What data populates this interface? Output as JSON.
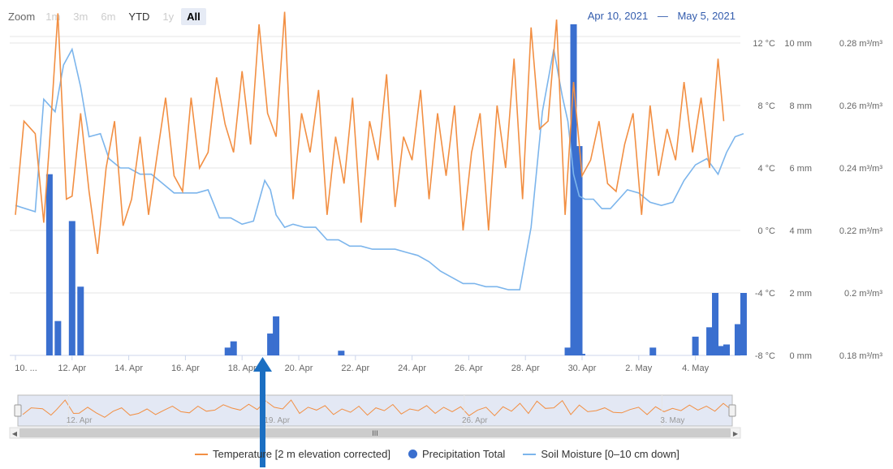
{
  "range_selector": {
    "zoom_label": "Zoom",
    "buttons": [
      {
        "label": "1m",
        "state": "disabled"
      },
      {
        "label": "3m",
        "state": "disabled"
      },
      {
        "label": "6m",
        "state": "disabled"
      },
      {
        "label": "YTD",
        "state": "active"
      },
      {
        "label": "1y",
        "state": "disabled"
      },
      {
        "label": "All",
        "state": "selected"
      }
    ],
    "from": "Apr 10, 2021",
    "separator": "—",
    "to": "May 5, 2021"
  },
  "colors": {
    "temperature": "#f28f43",
    "precipitation": "#3a6fcf",
    "soil": "#7cb5ec",
    "navigator_fill": "#ccd6eb",
    "arrow": "#1b6fc2"
  },
  "chart_data": {
    "type": "line",
    "x_tick_labels": [
      "10. ...",
      "12. Apr",
      "14. Apr",
      "16. Apr",
      "18. Apr",
      "20. Apr",
      "22. Apr",
      "24. Apr",
      "26. Apr",
      "28. Apr",
      "30. Apr",
      "2. May",
      "4. May"
    ],
    "x_range": [
      "2021-04-10",
      "2021-05-05"
    ],
    "y_axes": [
      {
        "name": "temperature",
        "unit": "°C",
        "ticks": [
          "12 °C",
          "8 °C",
          "4 °C",
          "0 °C",
          "-4 °C",
          "-8 °C"
        ],
        "min": -8,
        "max": 12
      },
      {
        "name": "precipitation",
        "unit": "mm",
        "ticks": [
          "10 mm",
          "8 mm",
          "6 mm",
          "4 mm",
          "2 mm",
          "0 mm"
        ],
        "min": 0,
        "max": 10
      },
      {
        "name": "soil_moisture",
        "unit": "m³/m³",
        "ticks": [
          "0.28 m³/m³",
          "0.26 m³/m³",
          "0.24 m³/m³",
          "0.22 m³/m³",
          "0.2 m³/m³",
          "0.18 m³/m³"
        ],
        "min": 0.18,
        "max": 0.28
      }
    ],
    "series": [
      {
        "name": "Temperature [2 m elevation corrected]",
        "type": "line",
        "axis": "temperature",
        "x": [
          10.0,
          10.3,
          10.7,
          11.0,
          11.2,
          11.5,
          11.8,
          12.0,
          12.3,
          12.6,
          12.9,
          13.2,
          13.5,
          13.8,
          14.1,
          14.4,
          14.7,
          15.0,
          15.3,
          15.6,
          15.9,
          16.2,
          16.5,
          16.8,
          17.1,
          17.4,
          17.7,
          18.0,
          18.3,
          18.6,
          18.9,
          19.2,
          19.5,
          19.8,
          20.1,
          20.4,
          20.7,
          21.0,
          21.3,
          21.6,
          21.9,
          22.2,
          22.5,
          22.8,
          23.1,
          23.4,
          23.7,
          24.0,
          24.3,
          24.6,
          24.9,
          25.2,
          25.5,
          25.8,
          26.1,
          26.4,
          26.7,
          27.0,
          27.3,
          27.6,
          27.9,
          28.2,
          28.5,
          28.8,
          29.1,
          29.4,
          29.7,
          30.0,
          30.3,
          30.6,
          30.9,
          31.2,
          31.5,
          31.8,
          32.1,
          32.4,
          32.7,
          33.0,
          33.3,
          33.6,
          33.9,
          34.2,
          34.5,
          34.8,
          35.0
        ],
        "y": [
          1.0,
          7.0,
          6.2,
          0.5,
          5.5,
          13.9,
          2.0,
          2.2,
          7.5,
          2.5,
          -1.5,
          4.0,
          7.0,
          0.3,
          2.0,
          6.0,
          1.0,
          4.8,
          8.5,
          3.5,
          2.5,
          8.5,
          4.0,
          5.0,
          9.8,
          6.8,
          5.0,
          10.2,
          5.5,
          13.2,
          7.5,
          6.0,
          14.0,
          2.0,
          7.5,
          5.0,
          9.0,
          1.0,
          6.0,
          3.0,
          8.5,
          0.5,
          7.0,
          4.5,
          10.0,
          1.5,
          6.0,
          4.5,
          9.0,
          2.0,
          7.5,
          3.5,
          8.0,
          0.0,
          5.0,
          7.5,
          0.0,
          8.0,
          4.0,
          11.0,
          2.0,
          13.0,
          6.5,
          7.0,
          13.5,
          1.0,
          9.5,
          3.5,
          4.5,
          7.0,
          3.0,
          2.5,
          5.5,
          7.5,
          1.0,
          8.0,
          3.5,
          6.5,
          4.5,
          9.5,
          5.0,
          8.5,
          4.0,
          11.0,
          7.0
        ]
      },
      {
        "name": "Precipitation Total",
        "type": "column",
        "axis": "precipitation",
        "x": [
          11.2,
          11.5,
          12.0,
          12.3,
          17.5,
          17.7,
          19.0,
          19.2,
          21.5,
          29.5,
          29.7,
          29.9,
          30.0,
          32.5,
          34.0,
          34.5,
          34.7,
          34.9,
          35.1,
          35.5,
          35.7
        ],
        "y": [
          5.8,
          1.1,
          4.3,
          2.2,
          0.25,
          0.45,
          0.7,
          1.25,
          0.15,
          0.25,
          10.6,
          6.7,
          0.05,
          0.25,
          0.6,
          0.9,
          2.0,
          0.3,
          0.35,
          1.0,
          2.0
        ]
      },
      {
        "name": "Soil Moisture [0–10 cm down]",
        "type": "line",
        "axis": "soil_moisture",
        "x": [
          10.0,
          10.7,
          11.0,
          11.4,
          11.7,
          12.0,
          12.3,
          12.6,
          13.0,
          13.3,
          13.7,
          14.0,
          14.4,
          14.8,
          15.2,
          15.6,
          16.0,
          16.4,
          16.8,
          17.2,
          17.6,
          18.0,
          18.4,
          18.8,
          19.0,
          19.2,
          19.5,
          19.8,
          20.2,
          20.6,
          21.0,
          21.4,
          21.8,
          22.2,
          22.6,
          23.0,
          23.4,
          23.8,
          24.2,
          24.6,
          25.0,
          25.4,
          25.8,
          26.2,
          26.6,
          27.0,
          27.4,
          27.8,
          28.2,
          28.6,
          29.0,
          29.3,
          29.5,
          29.7,
          29.9,
          30.1,
          30.4,
          30.7,
          31.0,
          31.3,
          31.6,
          32.0,
          32.4,
          32.8,
          33.2,
          33.6,
          34.0,
          34.4,
          34.8,
          35.1,
          35.4,
          35.7
        ],
        "y": [
          0.228,
          0.226,
          0.262,
          0.258,
          0.273,
          0.278,
          0.266,
          0.25,
          0.251,
          0.243,
          0.24,
          0.24,
          0.238,
          0.238,
          0.235,
          0.232,
          0.232,
          0.232,
          0.233,
          0.224,
          0.224,
          0.222,
          0.223,
          0.236,
          0.233,
          0.225,
          0.221,
          0.222,
          0.221,
          0.221,
          0.217,
          0.217,
          0.215,
          0.215,
          0.214,
          0.214,
          0.214,
          0.213,
          0.212,
          0.21,
          0.207,
          0.205,
          0.203,
          0.203,
          0.202,
          0.202,
          0.201,
          0.201,
          0.221,
          0.258,
          0.278,
          0.263,
          0.255,
          0.238,
          0.231,
          0.23,
          0.23,
          0.227,
          0.227,
          0.23,
          0.233,
          0.232,
          0.229,
          0.228,
          0.229,
          0.236,
          0.241,
          0.243,
          0.238,
          0.245,
          0.25,
          0.251
        ]
      }
    ],
    "grid": true,
    "legend_position": "bottom-center"
  },
  "navigator": {
    "labels": [
      "12. Apr",
      "19. Apr",
      "26. Apr",
      "3. May"
    ],
    "scroll_thumb": "III",
    "left_arrow": "◀",
    "right_arrow": "▶"
  },
  "annotation": {
    "type": "arrow",
    "direction": "up",
    "pointing_at_date": "2021-04-19"
  }
}
